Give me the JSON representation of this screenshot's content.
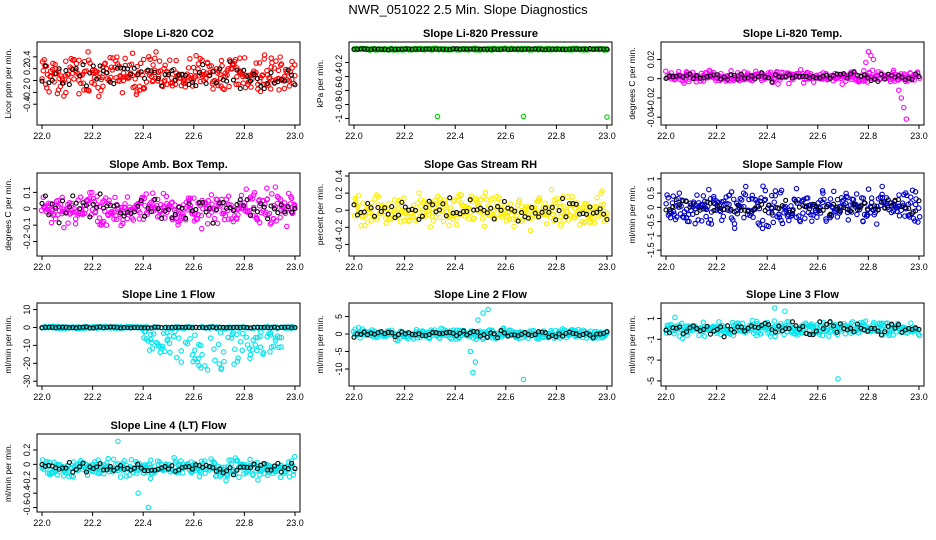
{
  "figure_title": "NWR_051022  2.5 Min. Slope Diagnostics",
  "chart_data": [
    {
      "type": "scatter",
      "title": "Slope Li-820 CO2",
      "ylabel": "Licor ppm per min.",
      "color": "#ff0000",
      "xlim": [
        22.0,
        23.0
      ],
      "ylim": [
        -0.7,
        0.6
      ],
      "yticks": [
        -0.4,
        -0.2,
        0.0,
        0.2,
        0.4
      ],
      "xticks": [
        22.0,
        22.2,
        22.4,
        22.6,
        22.8,
        23.0
      ],
      "center": 0.1,
      "spread": 0.22,
      "black_spread": 0.16
    },
    {
      "type": "scatter",
      "title": "Slope Li-820 Pressure",
      "ylabel": "kPa per min.",
      "color": "#00cc00",
      "xlim": [
        22.0,
        23.0
      ],
      "ylim": [
        -1.05,
        0.05
      ],
      "yticks": [
        -1.0,
        -0.8,
        -0.6,
        -0.4,
        -0.2
      ],
      "xticks": [
        22.0,
        22.2,
        22.4,
        22.6,
        22.8,
        23.0
      ],
      "center": -0.01,
      "spread": 0.008,
      "black_spread": 0.005,
      "outliers": [
        [
          22.33,
          -0.97
        ],
        [
          22.67,
          -0.97
        ],
        [
          23.0,
          -0.98
        ]
      ]
    },
    {
      "type": "scatter",
      "title": "Slope Li-820 Temp.",
      "ylabel": "degrees C per min.",
      "color": "#ff00ff",
      "xlim": [
        22.0,
        23.0
      ],
      "ylim": [
        -0.045,
        0.035
      ],
      "yticks": [
        -0.04,
        -0.02,
        0.0,
        0.02
      ],
      "xticks": [
        22.0,
        22.2,
        22.4,
        22.6,
        22.8,
        23.0
      ],
      "center": 0.002,
      "spread": 0.004,
      "black_spread": 0.003,
      "outliers": [
        [
          22.8,
          0.028
        ],
        [
          22.81,
          0.024
        ],
        [
          22.82,
          0.02
        ],
        [
          22.79,
          0.017
        ],
        [
          22.93,
          -0.02
        ],
        [
          22.94,
          -0.03
        ],
        [
          22.95,
          -0.042
        ],
        [
          22.92,
          -0.012
        ]
      ]
    },
    {
      "type": "scatter",
      "title": "Slope Amb. Box Temp.",
      "ylabel": "degrees C per min.",
      "color": "#ff00ff",
      "xlim": [
        22.0,
        23.0
      ],
      "ylim": [
        -0.27,
        0.2
      ],
      "yticks": [
        -0.2,
        -0.1,
        0.0,
        0.1
      ],
      "xticks": [
        22.0,
        22.2,
        22.4,
        22.6,
        22.8,
        23.0
      ],
      "center": 0.0,
      "spread": 0.07,
      "black_spread": 0.05
    },
    {
      "type": "scatter",
      "title": "Slope Gas Stream RH",
      "ylabel": "percent per min.",
      "color": "#ffee00",
      "xlim": [
        22.0,
        23.0
      ],
      "ylim": [
        -0.5,
        0.4
      ],
      "yticks": [
        -0.4,
        -0.2,
        0.0,
        0.2,
        0.4
      ],
      "xticks": [
        22.0,
        22.2,
        22.4,
        22.6,
        22.8,
        23.0
      ],
      "center": 0.0,
      "spread": 0.13,
      "black_spread": 0.09
    },
    {
      "type": "scatter",
      "title": "Slope Sample Flow",
      "ylabel": "ml/min per min.",
      "color": "#0000cc",
      "xlim": [
        22.0,
        23.0
      ],
      "ylim": [
        -1.6,
        1.1
      ],
      "yticks": [
        -1.5,
        -1.0,
        -0.5,
        0.0,
        0.5,
        1.0
      ],
      "xticks": [
        22.0,
        22.2,
        22.4,
        22.6,
        22.8,
        23.0
      ],
      "center": 0.0,
      "spread": 0.4,
      "black_spread": 0.2
    },
    {
      "type": "scatter",
      "title": "Slope Line 1 Flow",
      "ylabel": "ml/min per min.",
      "color": "#00e5ee",
      "xlim": [
        22.0,
        23.0
      ],
      "ylim": [
        -31,
        12
      ],
      "yticks": [
        -30,
        -20,
        -10,
        0,
        10
      ],
      "xticks": [
        22.0,
        22.2,
        22.4,
        22.6,
        22.8,
        23.0
      ],
      "center": 0.0,
      "spread": 0.4,
      "black_spread": 0.2,
      "tail": {
        "x0": 22.4,
        "x1": 22.95,
        "amp": 24
      }
    },
    {
      "type": "scatter",
      "title": "Slope Line 2 Flow",
      "ylabel": "ml/min per min.",
      "color": "#00e5ee",
      "xlim": [
        22.0,
        23.0
      ],
      "ylim": [
        -14,
        8
      ],
      "yticks": [
        -10,
        -5,
        0,
        5
      ],
      "xticks": [
        22.0,
        22.2,
        22.4,
        22.6,
        22.8,
        23.0
      ],
      "center": 0.0,
      "spread": 0.9,
      "black_spread": 0.6,
      "outliers": [
        [
          22.46,
          -5
        ],
        [
          22.48,
          -8
        ],
        [
          22.47,
          -11
        ],
        [
          22.67,
          -13
        ],
        [
          22.49,
          4
        ],
        [
          22.51,
          6
        ],
        [
          22.53,
          7
        ]
      ]
    },
    {
      "type": "scatter",
      "title": "Slope Line 3 Flow",
      "ylabel": "ml/min per min.",
      "color": "#00e5ee",
      "xlim": [
        22.0,
        23.0
      ],
      "ylim": [
        -5.2,
        2.2
      ],
      "yticks": [
        -5,
        -3,
        -1,
        1
      ],
      "xticks": [
        22.0,
        22.2,
        22.4,
        22.6,
        22.8,
        23.0
      ],
      "center": 0.0,
      "spread": 0.5,
      "black_spread": 0.4,
      "outliers": [
        [
          22.68,
          -4.8
        ],
        [
          22.43,
          2.0
        ],
        [
          22.47,
          1.7
        ]
      ]
    },
    {
      "type": "scatter",
      "title": "Slope Line 4 (LT) Flow",
      "ylabel": "ml/min per min.",
      "color": "#00e5ee",
      "xlim": [
        22.0,
        23.0
      ],
      "ylim": [
        -0.62,
        0.38
      ],
      "yticks": [
        -0.6,
        -0.4,
        -0.2,
        0.0,
        0.2
      ],
      "xticks": [
        22.0,
        22.2,
        22.4,
        22.6,
        22.8,
        23.0
      ],
      "center": -0.05,
      "spread": 0.09,
      "black_spread": 0.05,
      "outliers": [
        [
          22.38,
          -0.4
        ],
        [
          22.42,
          -0.6
        ],
        [
          22.3,
          0.32
        ]
      ]
    }
  ]
}
